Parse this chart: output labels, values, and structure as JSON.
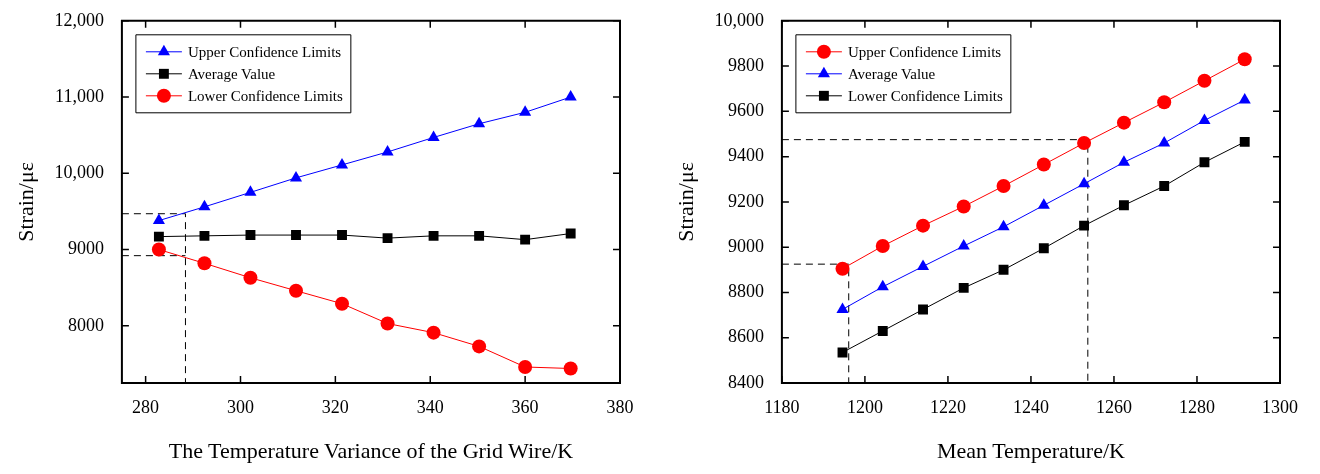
{
  "chart_data": [
    {
      "type": "line",
      "xlabel": "The Temperature Variance of the Grid Wire/K",
      "ylabel": "Strain/με",
      "xlim": [
        275,
        380
      ],
      "xticks": [
        280,
        300,
        320,
        340,
        360,
        380
      ],
      "ylim": [
        7250,
        12000
      ],
      "yticks": [
        8000,
        9000,
        {
          "value": 10000,
          "label": "10,000"
        },
        {
          "value": 11000,
          "label": "11,000"
        },
        {
          "value": 12000,
          "label": "12,000"
        }
      ],
      "legend": "top left",
      "grid": false,
      "x": [
        282.8,
        292.4,
        302.1,
        311.7,
        321.4,
        331.0,
        340.7,
        350.3,
        360.0,
        369.6
      ],
      "series": [
        {
          "name": "Upper Confidence Limits",
          "color": "#0000ff",
          "marker": "triangle",
          "values": [
            9380,
            9560,
            9750,
            9940,
            10110,
            10280,
            10470,
            10650,
            10800,
            11000
          ]
        },
        {
          "name": "Average Value",
          "color": "#000000",
          "marker": "square",
          "values": [
            9170,
            9180,
            9190,
            9190,
            9190,
            9150,
            9180,
            9180,
            9130,
            9210
          ]
        },
        {
          "name": "Lower Confidence Limits",
          "color": "#ff0000",
          "marker": "circle",
          "values": [
            9000,
            8820,
            8630,
            8460,
            8290,
            8030,
            7910,
            7730,
            7460,
            7440
          ]
        },
        {
          "color": "#000000",
          "marker": "none",
          "line_style": "dashed",
          "x": [
            275,
            288.4,
            288.4
          ],
          "values": [
            9470,
            9470,
            7250
          ]
        },
        {
          "color": "#000000",
          "marker": "none",
          "line_style": "dashed",
          "x": [
            275,
            288.4
          ],
          "values": [
            8920,
            8920
          ]
        }
      ]
    },
    {
      "type": "line",
      "xlabel": "Mean Temperature/K",
      "ylabel": "Strain/με",
      "xlim": [
        1180,
        1300
      ],
      "xticks": [
        1180,
        1200,
        1220,
        1240,
        1260,
        1280,
        1300
      ],
      "ylim": [
        8400,
        10000
      ],
      "yticks": [
        8400,
        8600,
        8800,
        9000,
        9200,
        9400,
        9600,
        9800,
        {
          "value": 10000,
          "label": "10,000"
        }
      ],
      "legend": "top left",
      "grid": false,
      "x": [
        1194.6,
        1204.3,
        1214.0,
        1223.8,
        1233.4,
        1243.1,
        1252.8,
        1262.4,
        1272.1,
        1281.8,
        1291.5
      ],
      "series": [
        {
          "name": "Upper Confidence Limits",
          "color": "#ff0000",
          "marker": "circle",
          "values": [
            8905,
            9005,
            9095,
            9180,
            9270,
            9365,
            9460,
            9550,
            9640,
            9735,
            9830
          ]
        },
        {
          "name": "Average Value",
          "color": "#0000ff",
          "marker": "triangle",
          "values": [
            8725,
            8825,
            8915,
            9005,
            9090,
            9185,
            9280,
            9375,
            9460,
            9560,
            9650
          ]
        },
        {
          "name": "Lower Confidence Limits",
          "color": "#000000",
          "marker": "square",
          "values": [
            8535,
            8630,
            8725,
            8820,
            8900,
            8995,
            9095,
            9185,
            9270,
            9375,
            9465
          ]
        },
        {
          "color": "#000000",
          "marker": "none",
          "line_style": "dashed",
          "x": [
            1180,
            1253.7,
            1253.7
          ],
          "values": [
            9475,
            9475,
            8400
          ]
        },
        {
          "color": "#000000",
          "marker": "none",
          "line_style": "dashed",
          "x": [
            1180,
            1196.1,
            1196.1
          ],
          "values": [
            8925,
            8925,
            8400
          ]
        }
      ]
    }
  ]
}
